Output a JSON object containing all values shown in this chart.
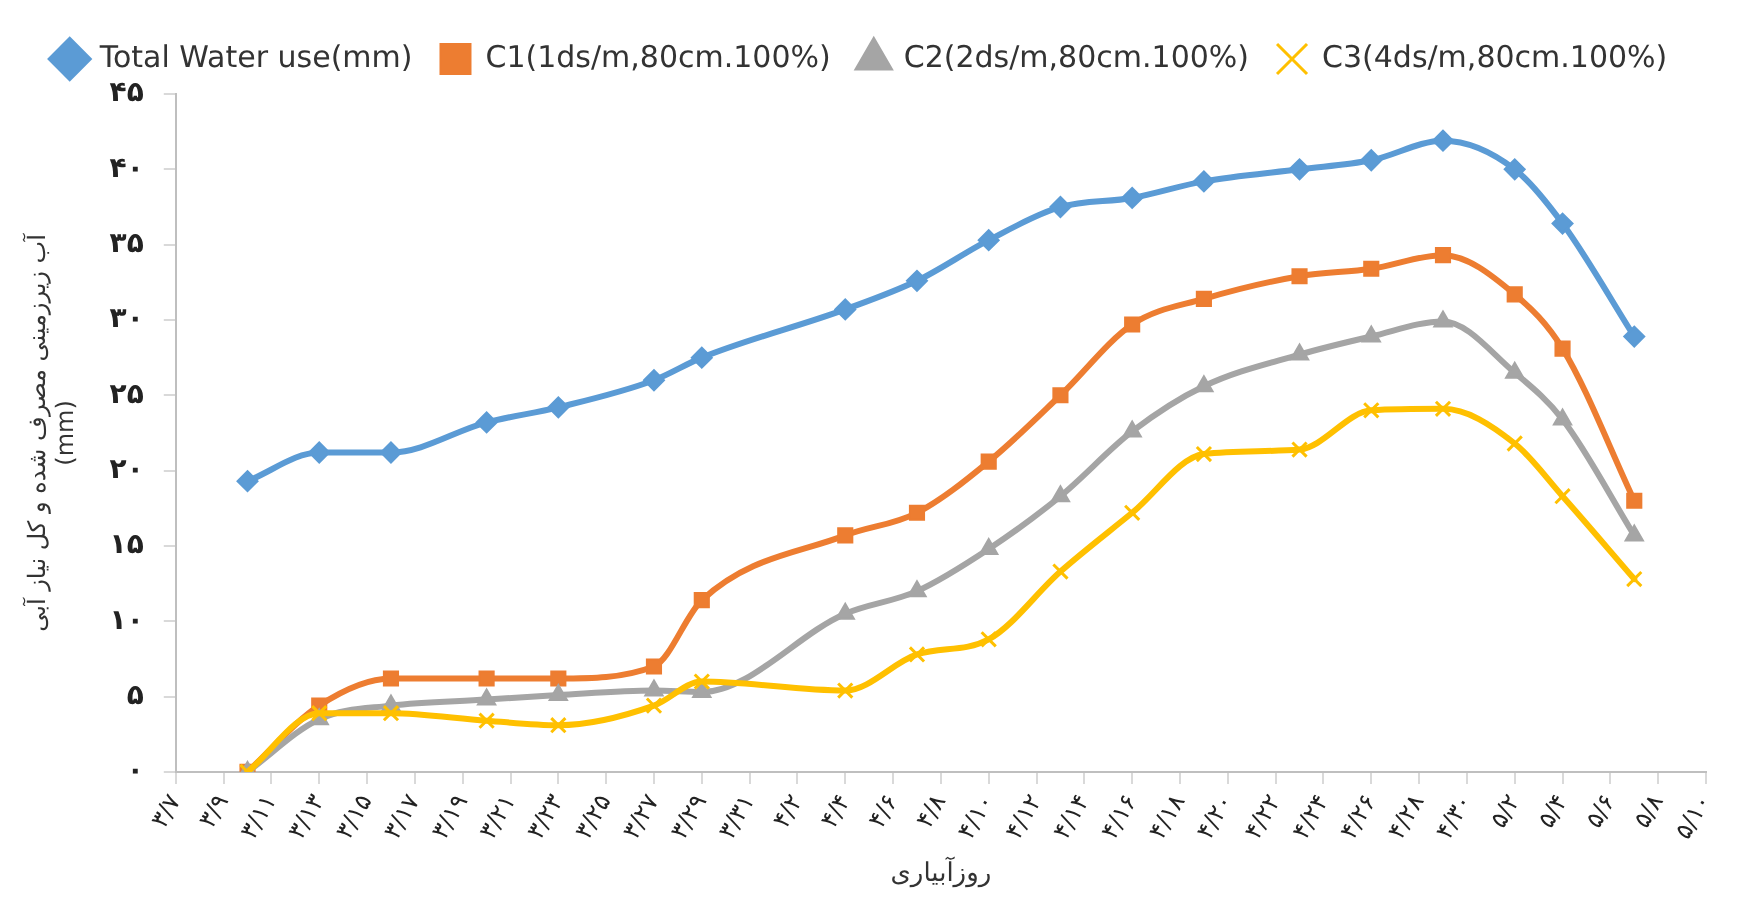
{
  "chart_data": {
    "type": "line",
    "xlabel": "روزآبیاری",
    "ylabel": "آب زیرزمینی مصرف شده و کل نیاز آبی\n(mm)",
    "x": [
      "--03-10",
      "--03-13",
      "--03-16",
      "--03-20",
      "--03-23",
      "--03-27",
      "--03-29",
      "--04-04",
      "--04-07",
      "--04-10",
      "--04-13",
      "--04-16",
      "--04-19",
      "--04-23",
      "--04-26",
      "--04-29",
      "--05-02",
      "--05-04",
      "--05-07"
    ],
    "xlim": [
      "--03-07",
      "--05-10"
    ],
    "xticks": [
      {
        "value": "--03-07",
        "label": "۳/۷"
      },
      {
        "value": "--03-09",
        "label": "۳/۹"
      },
      {
        "value": "--03-11",
        "label": "۳/۱۱"
      },
      {
        "value": "--03-13",
        "label": "۳/۱۳"
      },
      {
        "value": "--03-15",
        "label": "۳/۱۵"
      },
      {
        "value": "--03-17",
        "label": "۳/۱۷"
      },
      {
        "value": "--03-19",
        "label": "۳/۱۹"
      },
      {
        "value": "--03-21",
        "label": "۳/۲۱"
      },
      {
        "value": "--03-23",
        "label": "۳/۲۳"
      },
      {
        "value": "--03-25",
        "label": "۳/۲۵"
      },
      {
        "value": "--03-27",
        "label": "۳/۲۷"
      },
      {
        "value": "--03-29",
        "label": "۳/۲۹"
      },
      {
        "value": "--03-31",
        "label": "۳/۳۱"
      },
      {
        "value": "--04-02",
        "label": "۴/۲"
      },
      {
        "value": "--04-04",
        "label": "۴/۴"
      },
      {
        "value": "--04-06",
        "label": "۴/۶"
      },
      {
        "value": "--04-08",
        "label": "۴/۸"
      },
      {
        "value": "--04-10",
        "label": "۴/۱۰"
      },
      {
        "value": "--04-12",
        "label": "۴/۱۲"
      },
      {
        "value": "--04-14",
        "label": "۴/۱۴"
      },
      {
        "value": "--04-16",
        "label": "۴/۱۶"
      },
      {
        "value": "--04-18",
        "label": "۴/۱۸"
      },
      {
        "value": "--04-20",
        "label": "۴/۲۰"
      },
      {
        "value": "--04-22",
        "label": "۴/۲۲"
      },
      {
        "value": "--04-24",
        "label": "۴/۲۴"
      },
      {
        "value": "--04-26",
        "label": "۴/۲۶"
      },
      {
        "value": "--04-28",
        "label": "۴/۲۸"
      },
      {
        "value": "--04-30",
        "label": "۴/۳۰"
      },
      {
        "value": "--05-02",
        "label": "۵/۲"
      },
      {
        "value": "--05-04",
        "label": "۵/۴"
      },
      {
        "value": "--05-06",
        "label": "۵/۶"
      },
      {
        "value": "--05-08",
        "label": "۵/۸"
      },
      {
        "value": "--05-10",
        "label": "۵/۱۰"
      }
    ],
    "ylim": [
      0,
      45
    ],
    "yticks": [
      {
        "value": 0,
        "label": "۰"
      },
      {
        "value": 5,
        "label": "۵"
      },
      {
        "value": 10,
        "label": "۱۰"
      },
      {
        "value": 15,
        "label": "۱۵"
      },
      {
        "value": 20,
        "label": "۲۰"
      },
      {
        "value": 25,
        "label": "۲۵"
      },
      {
        "value": 30,
        "label": "۳۰"
      },
      {
        "value": 35,
        "label": "۳۵"
      },
      {
        "value": 40,
        "label": "۴۰"
      },
      {
        "value": 45,
        "label": "۴۵"
      }
    ],
    "grid": false,
    "legend": "top",
    "line_style": "solid",
    "series": [
      {
        "name": "Total Water use(mm)",
        "color": "#5b9bd5",
        "marker": "diamond",
        "values": [
          19.3,
          21.2,
          21.2,
          23.2,
          24.2,
          26.0,
          27.5,
          30.7,
          32.6,
          35.3,
          37.5,
          38.1,
          39.2,
          40.0,
          40.6,
          41.9,
          40.0,
          36.4,
          28.9
        ]
      },
      {
        "name": "C1(1ds/m,80cm.100%)",
        "color": "#ed7d31",
        "marker": "square",
        "values": [
          0,
          4.4,
          6.2,
          6.2,
          6.2,
          7.0,
          11.4,
          15.7,
          17.2,
          20.6,
          25.0,
          29.7,
          31.4,
          32.9,
          33.4,
          34.3,
          31.7,
          28.1,
          18.0
        ]
      },
      {
        "name": "C2(2ds/m,80cm.100%)",
        "color": "#a5a5a5",
        "marker": "triangle",
        "values": [
          0,
          3.5,
          4.4,
          4.8,
          5.1,
          5.4,
          5.3,
          10.5,
          12.0,
          14.8,
          18.3,
          22.6,
          25.6,
          27.7,
          28.9,
          29.9,
          26.5,
          23.4,
          15.7
        ]
      },
      {
        "name": "C3(4ds/m,80cm.100%)",
        "color": "#ffc000",
        "marker": "cross",
        "values": [
          0,
          3.9,
          3.9,
          3.4,
          3.1,
          4.4,
          6.0,
          5.4,
          7.8,
          8.8,
          13.3,
          17.2,
          21.1,
          21.4,
          24.0,
          24.1,
          21.8,
          18.3,
          12.8
        ]
      }
    ]
  }
}
